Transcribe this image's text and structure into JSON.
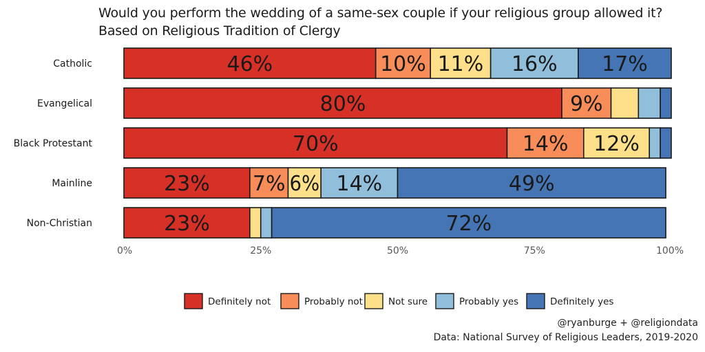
{
  "colors": {
    "definitely_not": "#d73027",
    "probably_not": "#f88d59",
    "not_sure": "#fee08b",
    "probably_yes": "#91bfdb",
    "definitely_yes": "#4575b4",
    "outline": "#1a1a1a",
    "axis_text": "#555555",
    "label_text": "#1a1a1a"
  },
  "chart_data": {
    "type": "bar",
    "orientation": "horizontal",
    "stacked": true,
    "title": "Would you perform the wedding of a same-sex couple if your religious group allowed it?",
    "subtitle": "Based on Religious Tradition of Clergy",
    "xlabel": "",
    "ylabel": "",
    "xlim": [
      0,
      100
    ],
    "x_ticks": [
      0,
      25,
      50,
      75,
      100
    ],
    "x_tick_labels": [
      "0%",
      "25%",
      "50%",
      "75%",
      "100%"
    ],
    "grid": false,
    "legend_position": "bottom",
    "categories": [
      "Catholic",
      "Evangelical",
      "Black Protestant",
      "Mainline",
      "Non-Christian"
    ],
    "series": [
      {
        "name": "Definitely not",
        "key": "definitely_not",
        "values": [
          46,
          80,
          70,
          23,
          23
        ],
        "labels": [
          "46%",
          "80%",
          "70%",
          "23%",
          "23%"
        ]
      },
      {
        "name": "Probably not",
        "key": "probably_not",
        "values": [
          10,
          9,
          14,
          7,
          0
        ],
        "labels": [
          "10%",
          "9%",
          "14%",
          "7%",
          ""
        ]
      },
      {
        "name": "Not sure",
        "key": "not_sure",
        "values": [
          11,
          5,
          12,
          6,
          2
        ],
        "labels": [
          "11%",
          "",
          "12%",
          "6%",
          ""
        ]
      },
      {
        "name": "Probably yes",
        "key": "probably_yes",
        "values": [
          16,
          4,
          2,
          14,
          2
        ],
        "labels": [
          "16%",
          "",
          "",
          "14%",
          ""
        ]
      },
      {
        "name": "Definitely yes",
        "key": "definitely_yes",
        "values": [
          17,
          2,
          2,
          49,
          72
        ],
        "labels": [
          "17%",
          "",
          "",
          "49%",
          "72%"
        ]
      }
    ]
  },
  "credits": {
    "handle": "@ryanburge + @religiondata",
    "source": "Data: National Survey of Religious Leaders, 2019-2020"
  }
}
